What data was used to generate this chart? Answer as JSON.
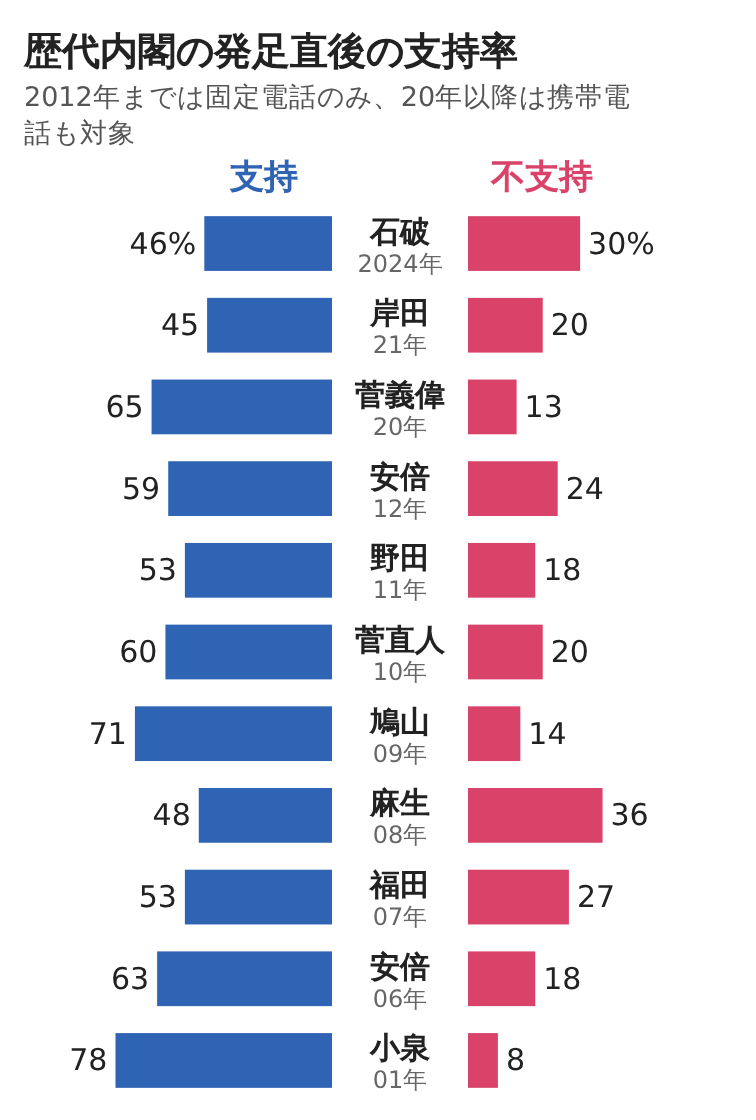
{
  "chart_data": [
    {
      "type": "bar",
      "orientation": "horizontal",
      "title": "歴代内閣の発足直後の支持率",
      "subtitle": "2012年までは固定電話のみ、20年以降は携帯電話も対象",
      "categories": [
        "石破\n2024年",
        "岸田\n21年",
        "菅義偉\n20年",
        "安倍\n12年",
        "野田\n11年",
        "菅直人\n10年",
        "鳩山\n09年",
        "麻生\n08年",
        "福田\n07年",
        "安倍\n06年",
        "小泉\n01年"
      ],
      "tick_labels": "y",
      "legend": "top",
      "series": [
        {
          "name": "支持",
          "color": "#2f63b3",
          "values": [
            46,
            45,
            65,
            59,
            53,
            60,
            71,
            48,
            53,
            63,
            78
          ],
          "value_labels": [
            "46%",
            "45",
            "65",
            "59",
            "53",
            "60",
            "71",
            "48",
            "53",
            "63",
            "78"
          ]
        }
      ]
    },
    {
      "type": "bar",
      "orientation": "horizontal",
      "categories": [
        null,
        null,
        null,
        null,
        null,
        null,
        null,
        null,
        null,
        null,
        null
      ],
      "tick_labels": false,
      "legend": "top",
      "series": [
        {
          "name": "不支持",
          "color": "#d9436a",
          "values": [
            30,
            20,
            13,
            24,
            18,
            20,
            14,
            36,
            27,
            18,
            8
          ],
          "value_labels": [
            "30%",
            "20",
            "13",
            "24",
            "18",
            "20",
            "14",
            "36",
            "27",
            "18",
            "8"
          ]
        }
      ]
    }
  ]
}
